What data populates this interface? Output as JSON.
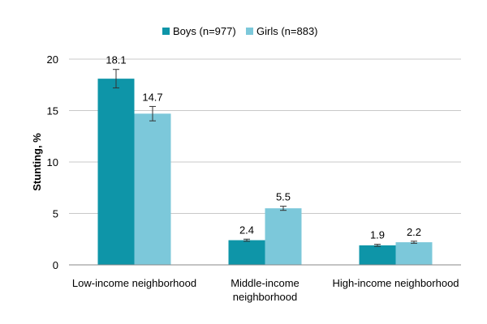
{
  "chart_data": {
    "type": "bar",
    "title": "",
    "xlabel": "",
    "ylabel": "Stunting, %",
    "ylim": [
      0,
      20
    ],
    "yticks": [
      "0",
      "5",
      "10",
      "15",
      "20"
    ],
    "grid": true,
    "legend_position": "top-center",
    "categories": [
      [
        "Low-income neighborhood"
      ],
      [
        "Middle-income",
        "neighborhood"
      ],
      [
        "High-income neighborhood"
      ]
    ],
    "series": [
      {
        "name": "Boys (n=977)",
        "color": "#0E95A8",
        "values": [
          18.1,
          2.4,
          1.9
        ],
        "labels": [
          "18.1",
          "2.4",
          "1.9"
        ],
        "error": [
          0.9,
          0.1,
          0.1
        ]
      },
      {
        "name": "Girls (n=883)",
        "color": "#7CC8DA",
        "values": [
          14.7,
          5.5,
          2.2
        ],
        "labels": [
          "14.7",
          "5.5",
          "2.2"
        ],
        "error": [
          0.7,
          0.2,
          0.1
        ]
      }
    ]
  }
}
